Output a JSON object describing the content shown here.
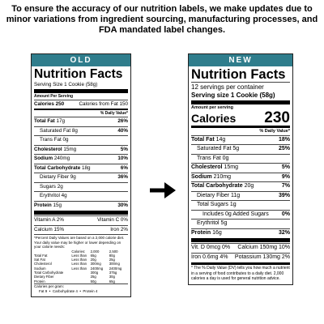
{
  "header": "To ensure the accuracy of our nutrition labels, we make updates due to minor variations from ingredient sourcing, manufacturing processes, and FDA mandated label changes.",
  "old_label": {
    "tag": "OLD",
    "title": "Nutrition Facts",
    "serving": "Serving Size 1 Cookie (58g)",
    "amount_per_serving": "Amount Per Serving",
    "calories": "Calories 250",
    "calories_from_fat": "Calories from Fat 150",
    "dv_header": "% Daily Value*",
    "rows": [
      {
        "name": "Total Fat",
        "amount": "17g",
        "dv": "26%",
        "sub": [
          {
            "label": "Saturated Fat 8g",
            "dv": "40%"
          },
          {
            "label": "Trans Fat 0g"
          }
        ]
      },
      {
        "name": "Cholesterol",
        "amount": "15mg",
        "dv": "5%"
      },
      {
        "name": "Sodium",
        "amount": "240mg",
        "dv": "10%"
      },
      {
        "name": "Total Carbohydrate",
        "amount": "18g",
        "dv": "6%",
        "sub": [
          {
            "label": "Dietary Fiber 9g",
            "dv": "36%"
          },
          {
            "label": "Sugars 2g"
          },
          {
            "label": "Erythritol 4g"
          }
        ]
      },
      {
        "name": "Protein",
        "amount": "15g",
        "dv": "30%"
      }
    ],
    "vitamins": [
      [
        "Vitamin A 2%",
        "Vitamin C 0%"
      ],
      [
        "Calcium 15%",
        "Iron 2%"
      ]
    ],
    "footnote": "*Percent Daily Values are based on a 2,000 calorie diet. Your daily value may be higher or lower depending on your calorie needs:",
    "table": {
      "header": [
        "Calories:",
        "2,000",
        "2,500"
      ],
      "rows": [
        [
          "Total Fat",
          "Less than",
          "65g",
          "80g"
        ],
        [
          "Sat Fat",
          "Less than",
          "20g",
          "25g"
        ],
        [
          "Cholesterol",
          "Less than",
          "300mg",
          "300mg"
        ],
        [
          "Sodium",
          "Less than",
          "2400mg",
          "2400mg"
        ],
        [
          "Total Carbohydrate",
          "300g",
          "375g"
        ],
        [
          "Dietary Fiber",
          "25g",
          "30g"
        ],
        [
          "Protein",
          "50g",
          "65g"
        ]
      ]
    },
    "calories_per_gram": "Calories per gram:",
    "per_gram": "Fat 9  •  Carbohydrate 4  •  Protein 4"
  },
  "new_label": {
    "tag": "NEW",
    "title": "Nutrition Facts",
    "servings": "12 servings per container",
    "serving_size": "Serving size 1 Cookie (58g)",
    "amount_per_serving": "Amount per serving",
    "calories_label": "Calories",
    "calories_value": "230",
    "dv_header": "% Daily Value*",
    "rows": [
      {
        "name": "Total Fat",
        "amount": "14g",
        "dv": "18%",
        "sub": [
          {
            "label": "Saturated Fat 5g",
            "dv": "25%"
          },
          {
            "label": "Trans Fat 0g"
          }
        ]
      },
      {
        "name": "Cholesterol",
        "amount": "15mg",
        "dv": "5%"
      },
      {
        "name": "Sodium",
        "amount": "210mg",
        "dv": "9%"
      },
      {
        "name": "Total Carbohydrate",
        "amount": "20g",
        "dv": "7%",
        "sub": [
          {
            "label": "Dietary Fiber 11g",
            "dv": "39%"
          },
          {
            "label": "Total Sugars 1g",
            "sub": [
              {
                "label": "Includes 0g Added Sugars",
                "dv": "0%"
              }
            ]
          },
          {
            "label": "Erythritol 5g"
          }
        ]
      },
      {
        "name": "Protein",
        "amount": "16g",
        "dv": "32%"
      }
    ],
    "vitamins": [
      [
        "Vit. D 0mcg 0%",
        "Calcium 150mg 10%"
      ],
      [
        "Iron 0.6mg 4%",
        "Potassium 130mg 2%"
      ]
    ],
    "footnote": "* The % Daily Value (DV) tells you how much a nutrient in a serving of food contributes to a daily diet. 2,000 calories a day is used for general nutrition advice."
  }
}
